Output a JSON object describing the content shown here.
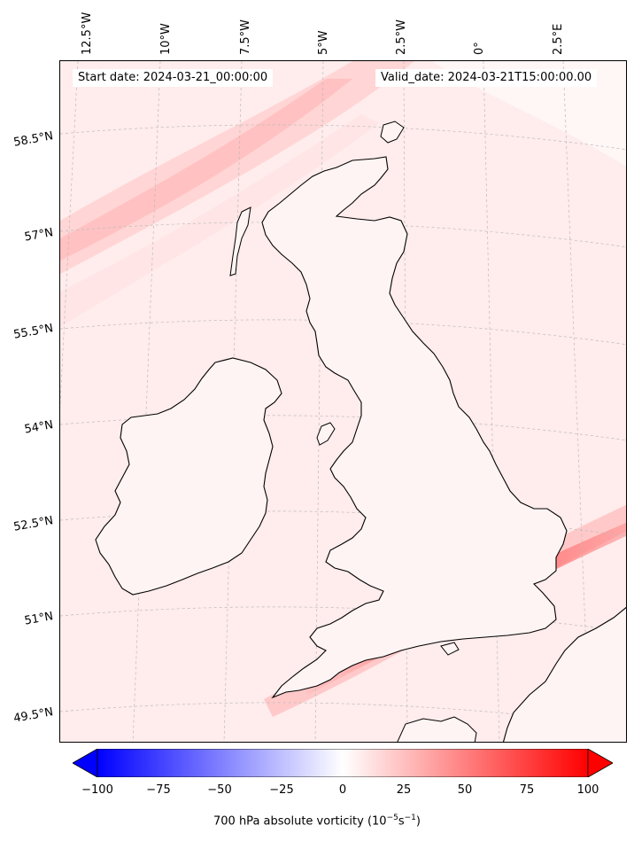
{
  "header": {
    "start_date": "Start date: 2024-03-21_00:00:00",
    "valid_date": "Valid_date: 2024-03-21T15:00:00.00"
  },
  "map": {
    "longitude_labels": [
      "12.5°W",
      "10°W",
      "7.5°W",
      "5°W",
      "2.5°W",
      "0°",
      "2.5°E"
    ],
    "latitude_labels": [
      "58.5°N",
      "57°N",
      "55.5°N",
      "54°N",
      "52.5°N",
      "51°N",
      "49.5°N"
    ],
    "field_background": "#fff0f0",
    "land_outline_color": "#000000",
    "gridline_color": "#bbbbbb"
  },
  "colorbar": {
    "min": -100,
    "max": 100,
    "ticks": [
      "−100",
      "−75",
      "−50",
      "−25",
      "0",
      "25",
      "50",
      "75",
      "100"
    ],
    "label_main": "700 hPa absolute vorticity (10",
    "label_exp1": "−5",
    "label_mid": "s",
    "label_exp2": "−1",
    "label_end": ")",
    "low_color": "#0000ff",
    "mid_color": "#ffffff",
    "high_color": "#ff0000"
  }
}
